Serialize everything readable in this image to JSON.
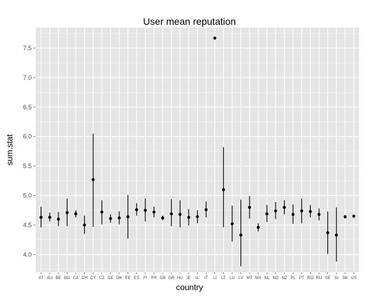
{
  "chart_data": {
    "type": "scatter",
    "title": "User mean reputation",
    "xlabel": "country",
    "ylabel": "sum.stat",
    "ylim": [
      3.7,
      7.85
    ],
    "yticks": [
      4.0,
      4.5,
      5.0,
      5.5,
      6.0,
      6.5,
      7.0,
      7.5
    ],
    "ytick_labels": [
      "4.0",
      "4.5",
      "5.0",
      "5.5",
      "6.0",
      "6.5",
      "7.0",
      "7.5"
    ],
    "grid": true,
    "categories": [
      "AT",
      "AU",
      "BE",
      "BG",
      "CA",
      "CH",
      "CY",
      "CZ",
      "DE",
      "DK",
      "EE",
      "ES",
      "FI",
      "FR",
      "GB",
      "GR",
      "HU",
      "IE",
      "IL",
      "IT",
      "LI",
      "LT",
      "LU",
      "LV",
      "MT",
      "MX",
      "NL",
      "NO",
      "NZ",
      "PL",
      "PT",
      "RO",
      "RU",
      "SE",
      "SI",
      "SK",
      "US"
    ],
    "series": [
      {
        "mean": [
          4.63,
          4.63,
          4.6,
          4.71,
          4.69,
          4.5,
          5.27,
          4.72,
          4.61,
          4.62,
          4.64,
          4.76,
          4.75,
          4.72,
          4.62,
          4.69,
          4.68,
          4.63,
          4.64,
          4.76,
          7.67,
          5.1,
          4.52,
          4.33,
          4.8,
          4.46,
          4.69,
          4.74,
          4.8,
          4.68,
          4.74,
          4.73,
          4.68,
          4.37,
          4.33,
          4.64,
          4.65
        ],
        "lower": [
          4.46,
          4.56,
          4.48,
          4.48,
          4.63,
          4.35,
          4.47,
          4.51,
          4.54,
          4.51,
          4.27,
          4.66,
          4.56,
          4.63,
          4.58,
          4.48,
          4.46,
          4.49,
          4.53,
          4.63,
          null,
          4.46,
          4.22,
          3.8,
          4.61,
          4.39,
          4.55,
          4.6,
          4.68,
          4.52,
          4.53,
          4.63,
          4.58,
          4.01,
          3.88,
          null,
          null
        ],
        "upper": [
          4.81,
          4.71,
          4.72,
          4.95,
          4.75,
          4.66,
          6.05,
          4.92,
          4.68,
          4.73,
          5.01,
          4.87,
          4.95,
          4.81,
          4.66,
          4.94,
          4.92,
          4.77,
          4.75,
          4.9,
          null,
          5.82,
          4.83,
          4.93,
          4.99,
          4.53,
          4.84,
          4.89,
          4.92,
          4.85,
          4.95,
          4.84,
          4.78,
          4.73,
          4.8,
          null,
          null
        ]
      }
    ]
  },
  "colors": {
    "panel": "#e5e5e5",
    "grid_major": "#ffffff",
    "grid_minor": "#f2f2f2",
    "mark": "#000000"
  }
}
